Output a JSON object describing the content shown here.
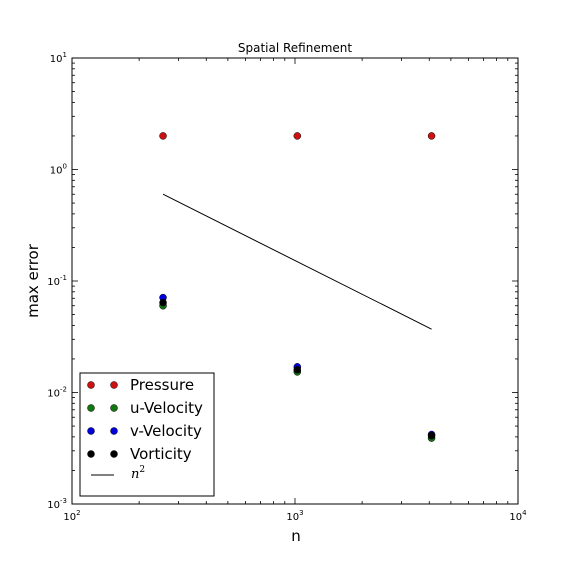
{
  "chart_data": {
    "type": "scatter",
    "title": "Spatial Refinement",
    "xlabel": "n",
    "ylabel": "max error",
    "xscale": "log",
    "yscale": "log",
    "xlim": [
      100,
      10000
    ],
    "ylim": [
      0.001,
      10
    ],
    "xticks": [
      {
        "value": 100,
        "base": "10",
        "exp": "2"
      },
      {
        "value": 1000,
        "base": "10",
        "exp": "3"
      },
      {
        "value": 10000,
        "base": "10",
        "exp": "4"
      }
    ],
    "yticks": [
      {
        "value": 0.001,
        "base": "10",
        "exp": "-3"
      },
      {
        "value": 0.01,
        "base": "10",
        "exp": "-2"
      },
      {
        "value": 0.1,
        "base": "10",
        "exp": "-1"
      },
      {
        "value": 1,
        "base": "10",
        "exp": "0"
      },
      {
        "value": 10,
        "base": "10",
        "exp": "1"
      }
    ],
    "x": [
      256,
      1024,
      4096
    ],
    "series": [
      {
        "name": "Pressure",
        "color": "#cc1111",
        "values": [
          2.0,
          2.0,
          2.0
        ]
      },
      {
        "name": "u-Velocity",
        "color": "#117711",
        "values": [
          0.06,
          0.0153,
          0.0039
        ]
      },
      {
        "name": "v-Velocity",
        "color": "#0000dd",
        "values": [
          0.071,
          0.017,
          0.0042
        ]
      },
      {
        "name": "Vorticity",
        "color": "#000000",
        "values": [
          0.064,
          0.016,
          0.0041
        ]
      }
    ],
    "reference_line": {
      "label_base": "n",
      "label_exp": "2",
      "color": "#000000",
      "x": [
        256,
        4096
      ],
      "y": [
        0.6,
        0.037
      ]
    },
    "grid": false,
    "legend_position": "lower-left"
  }
}
